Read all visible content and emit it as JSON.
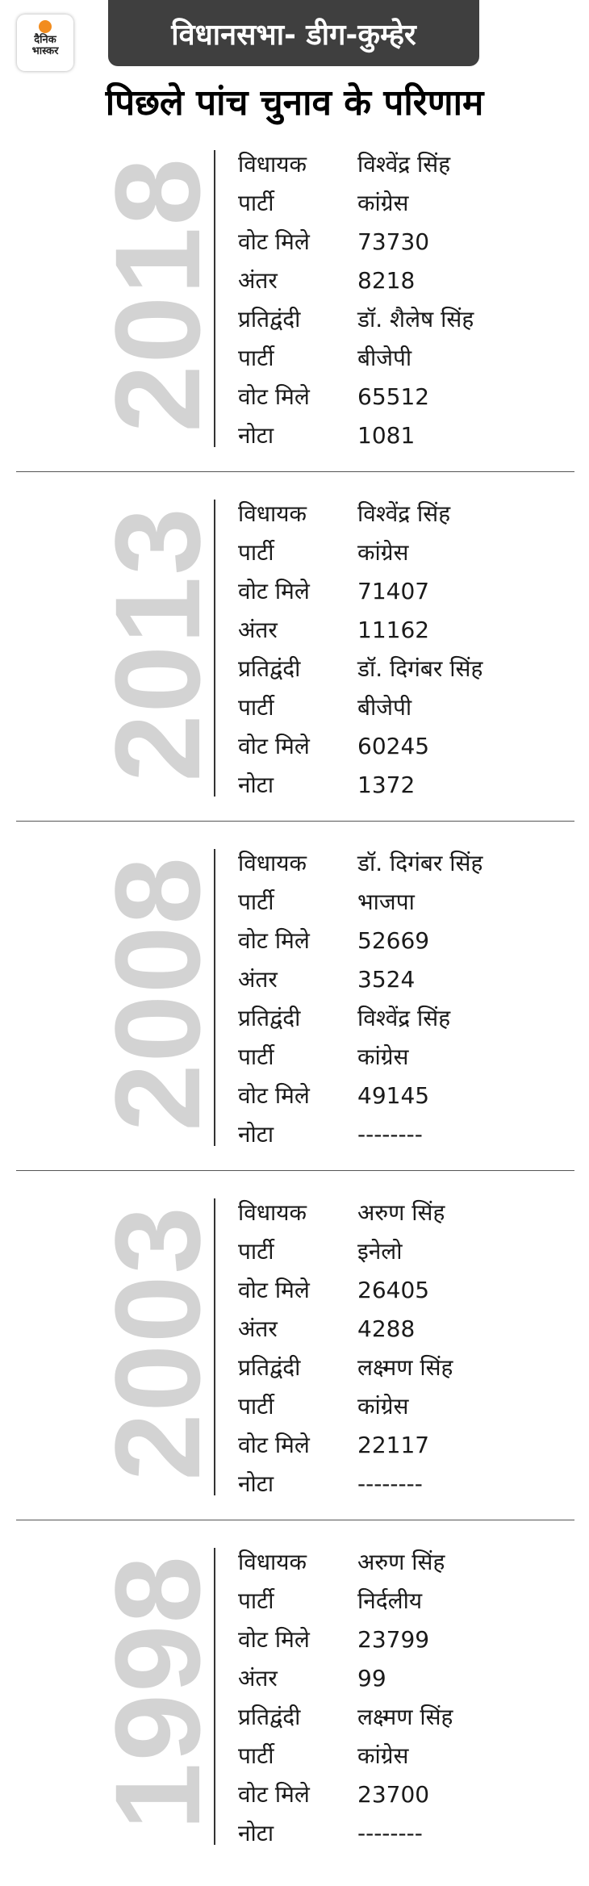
{
  "logo": {
    "line1": "दैनिक",
    "line2": "भास्कर"
  },
  "title": "विधानसभा- डीग-कुम्हेर",
  "heading": "पिछले पांच चुनाव के परिणाम",
  "elections": [
    {
      "year": "2018",
      "rows": [
        {
          "label": "विधायक",
          "value": "विश्वेंद्र सिंह"
        },
        {
          "label": " पार्टी",
          "value": "कांग्रेस"
        },
        {
          "label": "वोट मिले",
          "value": "73730"
        },
        {
          "label": "अंतर",
          "value": "8218"
        },
        {
          "label": "प्रतिद्वंदी",
          "value": "डॉ. शैलेष सिंह"
        },
        {
          "label": "पार्टी",
          "value": "बीजेपी"
        },
        {
          "label": "वोट मिले",
          "value": "65512"
        },
        {
          "label": "नोटा",
          "value": "1081"
        }
      ]
    },
    {
      "year": "2013",
      "rows": [
        {
          "label": "विधायक",
          "value": "विश्वेंद्र सिंह"
        },
        {
          "label": "पार्टी",
          "value": "कांग्रेस"
        },
        {
          "label": "वोट मिले",
          "value": "71407"
        },
        {
          "label": "अंतर",
          "value": "11162"
        },
        {
          "label": "प्रतिद्वंदी",
          "value": "डॉ. दिगंबर सिंह"
        },
        {
          "label": "पार्टी",
          "value": "बीजेपी"
        },
        {
          "label": "वोट मिले",
          "value": "60245"
        },
        {
          "label": "नोटा",
          "value": "1372"
        }
      ]
    },
    {
      "year": "2008",
      "rows": [
        {
          "label": "विधायक",
          "value": "डॉ. दिगंबर सिंह"
        },
        {
          "label": "पार्टी",
          "value": "भाजपा"
        },
        {
          "label": "वोट मिले",
          "value": "52669"
        },
        {
          "label": "अंतर",
          "value": "3524"
        },
        {
          "label": "प्रतिद्वंदी",
          "value": "विश्वेंद्र सिंह"
        },
        {
          "label": "पार्टी",
          "value": "कांग्रेस"
        },
        {
          "label": "वोट मिले",
          "value": "49145"
        },
        {
          "label": "नोटा",
          "value": "--------"
        }
      ]
    },
    {
      "year": "2003",
      "rows": [
        {
          "label": "विधायक",
          "value": "अरुण सिंह"
        },
        {
          "label": "पार्टी",
          "value": "इनेलो"
        },
        {
          "label": "वोट मिले",
          "value": "26405"
        },
        {
          "label": "अंतर",
          "value": "4288"
        },
        {
          "label": "प्रतिद्वंदी",
          "value": "लक्ष्मण सिंह"
        },
        {
          "label": "पार्टी",
          "value": "कांग्रेस"
        },
        {
          "label": "वोट मिले",
          "value": "22117"
        },
        {
          "label": "नोटा",
          "value": "--------"
        }
      ]
    },
    {
      "year": "1998",
      "rows": [
        {
          "label": "विधायक",
          "value": "अरुण सिंह"
        },
        {
          "label": "पार्टी",
          "value": "निर्दलीय"
        },
        {
          "label": "वोट मिले",
          "value": "23799"
        },
        {
          "label": "अंतर",
          "value": "99"
        },
        {
          "label": "प्रतिद्वंदी",
          "value": "लक्ष्मण सिंह"
        },
        {
          "label": "पार्टी",
          "value": "कांग्रेस"
        },
        {
          "label": "वोट मिले",
          "value": "23700"
        },
        {
          "label": "नोटा",
          "value": "--------"
        }
      ]
    }
  ]
}
